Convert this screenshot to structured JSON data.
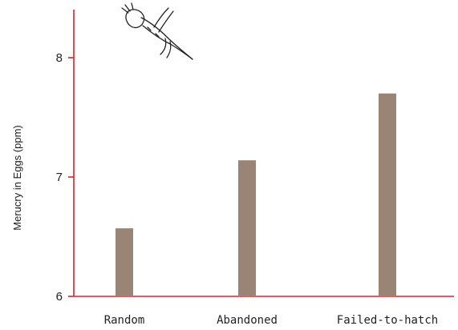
{
  "chart_data": {
    "type": "bar",
    "categories": [
      "Random",
      "Abandoned",
      "Failed-to-hatch"
    ],
    "values": [
      6.57,
      7.14,
      7.7
    ],
    "title": "",
    "xlabel": "",
    "ylabel": "Merucry in Eggs (ppm)",
    "ylim": [
      6,
      8.4
    ],
    "yticks": [
      "6",
      "7",
      "8"
    ],
    "grid": false,
    "colors": {
      "bar": "#9a8476",
      "axis": "#d9222a",
      "text": "#222222"
    },
    "decoration_icon": "bird-illustration-icon"
  }
}
